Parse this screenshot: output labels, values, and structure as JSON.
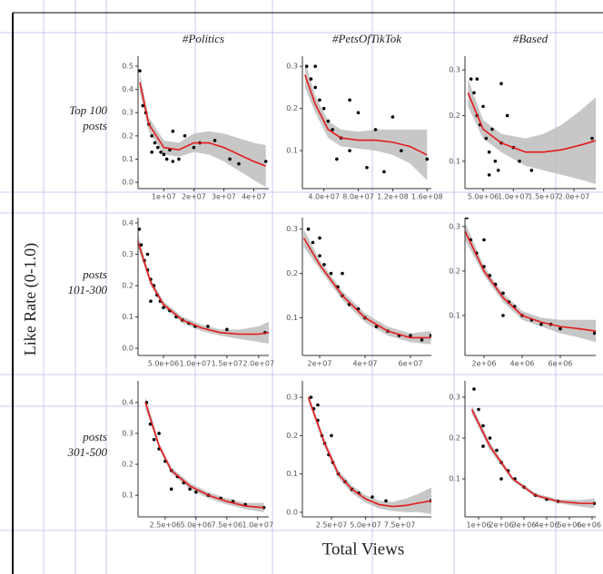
{
  "labels": {
    "columns": [
      "#Politics",
      "#PetsOfTikTok",
      "#Based"
    ],
    "rows": [
      [
        "Top 100",
        "posts"
      ],
      [
        "posts",
        "101-300"
      ],
      [
        "posts",
        "301-500"
      ]
    ],
    "y_label": "Like Rate (0-1.0)",
    "x_label": "Total Views"
  },
  "chart_data": [
    {
      "type": "scatter",
      "color": "#000000",
      "x": [
        2000000.0,
        3000000.0,
        4000000.0,
        5000000.0,
        6000000.0,
        7000000.0,
        8000000.0,
        9000000.0,
        10000000.0,
        11000000.0,
        12000000.0,
        13000000.0,
        15000000.0,
        17000000.0,
        20000000.0,
        22000000.0,
        27000000.0,
        32000000.0,
        35000000.0,
        44000000.0,
        6000000.0,
        13000000.0
      ],
      "y": [
        0.48,
        0.33,
        0.3,
        0.25,
        0.2,
        0.17,
        0.15,
        0.13,
        0.12,
        0.1,
        0.14,
        0.22,
        0.1,
        0.2,
        0.15,
        0.17,
        0.18,
        0.1,
        0.08,
        0.09,
        0.13,
        0.09
      ],
      "xlim": [
        1400000.0,
        45000000.0
      ],
      "ylim": [
        -0.027,
        0.543
      ],
      "xticks": [
        {
          "value": 10000000.0,
          "label": "1e+07"
        },
        {
          "value": 20000000.0,
          "label": "2e+07"
        },
        {
          "value": 30000000.0,
          "label": "3e+07"
        },
        {
          "value": 40000000.0,
          "label": "4e+07"
        }
      ],
      "yticks": [
        {
          "value": 0,
          "label": "0.0"
        },
        0.1,
        0.2,
        0.3,
        0.4,
        0.5
      ],
      "trend": {
        "color": "#e41a1c",
        "band_color": "#bdbdbd",
        "x": [
          2000000.0,
          5000000.0,
          10000000.0,
          15000000.0,
          20000000.0,
          25000000.0,
          30000000.0,
          35000000.0,
          40000000.0,
          44000000.0
        ],
        "y": [
          0.43,
          0.25,
          0.15,
          0.14,
          0.17,
          0.17,
          0.15,
          0.12,
          0.09,
          0.07
        ],
        "band_lower": [
          0.39,
          0.22,
          0.12,
          0.11,
          0.13,
          0.12,
          0.09,
          0.05,
          0.01,
          -0.02
        ],
        "band_upper": [
          0.47,
          0.28,
          0.18,
          0.17,
          0.21,
          0.22,
          0.21,
          0.19,
          0.17,
          0.16
        ]
      }
    },
    {
      "type": "scatter",
      "color": "#000000",
      "x": [
        20000000.0,
        25000000.0,
        30000000.0,
        35000000.0,
        40000000.0,
        45000000.0,
        50000000.0,
        60000000.0,
        70000000.0,
        70000000.0,
        80000000.0,
        90000000.0,
        100000000.0,
        110000000.0,
        120000000.0,
        130000000.0,
        160000000.0,
        30000000.0,
        55000000.0
      ],
      "y": [
        0.3,
        0.27,
        0.25,
        0.22,
        0.2,
        0.17,
        0.15,
        0.13,
        0.1,
        0.22,
        0.19,
        0.06,
        0.15,
        0.05,
        0.18,
        0.1,
        0.08,
        0.3,
        0.08
      ],
      "xlim": [
        15000000.0,
        165000000.0
      ],
      "ylim": [
        0.01,
        0.324
      ],
      "xticks": [
        {
          "value": 40000000.0,
          "label": "4.0e+07"
        },
        {
          "value": 80000000.0,
          "label": "8.0e+07"
        },
        {
          "value": 120000000.0,
          "label": "1.2e+08"
        },
        {
          "value": 160000000.0,
          "label": "1.6e+08"
        }
      ],
      "yticks": [
        0.1,
        0.2,
        0.3
      ],
      "trend": {
        "color": "#e41a1c",
        "band_color": "#bdbdbd",
        "x": [
          18000000.0,
          30000000.0,
          45000000.0,
          60000000.0,
          80000000.0,
          100000000.0,
          120000000.0,
          140000000.0,
          160000000.0
        ],
        "y": [
          0.28,
          0.21,
          0.15,
          0.13,
          0.125,
          0.125,
          0.12,
          0.11,
          0.09
        ],
        "band_lower": [
          0.25,
          0.19,
          0.13,
          0.11,
          0.105,
          0.1,
          0.09,
          0.07,
          0.03
        ],
        "band_upper": [
          0.31,
          0.23,
          0.17,
          0.15,
          0.145,
          0.15,
          0.15,
          0.15,
          0.15
        ]
      }
    },
    {
      "type": "scatter",
      "color": "#000000",
      "x": [
        3000000.0,
        3500000.0,
        4000000.0,
        4500000.0,
        5000000.0,
        5500000.0,
        6000000.0,
        6500000.0,
        7000000.0,
        7500000.0,
        8000000.0,
        8000000.0,
        9000000.0,
        10000000.0,
        11000000.0,
        13000000.0,
        23000000.0,
        4000000.0,
        6000000.0
      ],
      "y": [
        0.28,
        0.25,
        0.2,
        0.18,
        0.22,
        0.15,
        0.12,
        0.17,
        0.1,
        0.08,
        0.27,
        0.14,
        0.2,
        0.13,
        0.1,
        0.08,
        0.15,
        0.28,
        0.07
      ],
      "xlim": [
        2000000.0,
        23600000.0
      ],
      "ylim": [
        0.04,
        0.33
      ],
      "xticks": [
        {
          "value": 5000000.0,
          "label": "5.0e+06"
        },
        {
          "value": 10000000.0,
          "label": "1.0e+07"
        },
        {
          "value": 15000000.0,
          "label": "1.5e+07"
        },
        {
          "value": 20000000.0,
          "label": "2.0e+07"
        }
      ],
      "yticks": [
        0.1,
        0.2,
        0.3
      ],
      "trend": {
        "color": "#e41a1c",
        "band_color": "#bdbdbd",
        "x": [
          2500000.0,
          5000000.0,
          8000000.0,
          12000000.0,
          15000000.0,
          18000000.0,
          21000000.0,
          23600000.0
        ],
        "y": [
          0.25,
          0.17,
          0.14,
          0.12,
          0.12,
          0.125,
          0.135,
          0.145
        ],
        "band_lower": [
          0.22,
          0.15,
          0.12,
          0.09,
          0.08,
          0.07,
          0.06,
          0.05
        ],
        "band_upper": [
          0.28,
          0.19,
          0.16,
          0.15,
          0.16,
          0.18,
          0.21,
          0.24
        ]
      }
    },
    {
      "type": "scatter",
      "color": "#000000",
      "x": [
        1200000.0,
        1500000.0,
        2000000.0,
        2500000.0,
        3000000.0,
        3500000.0,
        4000000.0,
        4500000.0,
        5000000.0,
        6000000.0,
        7000000.0,
        8000000.0,
        9000000.0,
        10000000.0,
        12000000.0,
        15000000.0,
        21000000.0,
        2500000.0,
        3000000.0
      ],
      "y": [
        0.38,
        0.33,
        0.28,
        0.25,
        0.22,
        0.2,
        0.17,
        0.15,
        0.13,
        0.12,
        0.1,
        0.09,
        0.08,
        0.07,
        0.07,
        0.06,
        0.05,
        0.3,
        0.15
      ],
      "xlim": [
        1000000.0,
        21600000.0
      ],
      "ylim": [
        -0.023,
        0.417
      ],
      "xticks": [
        {
          "value": 5000000.0,
          "label": "5.0e+06"
        },
        {
          "value": 10000000.0,
          "label": "1.0e+07"
        },
        {
          "value": 15000000.0,
          "label": "1.5e+07"
        },
        {
          "value": 20000000.0,
          "label": "2.0e+07"
        }
      ],
      "yticks": [
        {
          "value": 0,
          "label": "0.0"
        },
        0.1,
        0.2,
        0.3,
        0.4
      ],
      "trend": {
        "color": "#e41a1c",
        "band_color": "#bdbdbd",
        "x": [
          1000000.0,
          3000000.0,
          5000000.0,
          8000000.0,
          11000000.0,
          14000000.0,
          17000000.0,
          20000000.0,
          21600000.0
        ],
        "y": [
          0.34,
          0.21,
          0.14,
          0.09,
          0.065,
          0.05,
          0.045,
          0.045,
          0.05
        ],
        "band_lower": [
          0.32,
          0.2,
          0.13,
          0.08,
          0.055,
          0.04,
          0.03,
          0.02,
          0.015
        ],
        "band_upper": [
          0.36,
          0.22,
          0.15,
          0.1,
          0.075,
          0.06,
          0.06,
          0.07,
          0.085
        ]
      }
    },
    {
      "type": "scatter",
      "color": "#000000",
      "x": [
        15000000.0,
        17000000.0,
        20000000.0,
        22000000.0,
        25000000.0,
        28000000.0,
        30000000.0,
        33000000.0,
        37000000.0,
        40000000.0,
        45000000.0,
        50000000.0,
        55000000.0,
        60000000.0,
        65000000.0,
        69000000.0,
        20000000.0,
        30000000.0
      ],
      "y": [
        0.3,
        0.27,
        0.24,
        0.22,
        0.2,
        0.17,
        0.15,
        0.13,
        0.12,
        0.1,
        0.08,
        0.07,
        0.06,
        0.06,
        0.05,
        0.06,
        0.28,
        0.2
      ],
      "xlim": [
        12400000.0,
        69200000.0
      ],
      "ylim": [
        0.015,
        0.326
      ],
      "xticks": [
        {
          "value": 20000000.0,
          "label": "2e+07"
        },
        {
          "value": 40000000.0,
          "label": "4e+07"
        },
        {
          "value": 60000000.0,
          "label": "6e+07"
        }
      ],
      "yticks": [
        0.1,
        0.2,
        0.3
      ],
      "trend": {
        "color": "#e41a1c",
        "band_color": "#bdbdbd",
        "x": [
          13000000.0,
          20000000.0,
          30000000.0,
          40000000.0,
          50000000.0,
          60000000.0,
          69000000.0
        ],
        "y": [
          0.28,
          0.22,
          0.15,
          0.1,
          0.07,
          0.055,
          0.055
        ],
        "band_lower": [
          0.26,
          0.21,
          0.14,
          0.09,
          0.06,
          0.045,
          0.04
        ],
        "band_upper": [
          0.3,
          0.23,
          0.16,
          0.11,
          0.08,
          0.065,
          0.07
        ]
      }
    },
    {
      "type": "scatter",
      "color": "#000000",
      "x": [
        1100000.0,
        1300000.0,
        1600000.0,
        2000000.0,
        2300000.0,
        2600000.0,
        3000000.0,
        3300000.0,
        3600000.0,
        4000000.0,
        4500000.0,
        5000000.0,
        5500000.0,
        6000000.0,
        7800000.0,
        2000000.0,
        3000000.0
      ],
      "y": [
        0.32,
        0.27,
        0.24,
        0.21,
        0.19,
        0.17,
        0.15,
        0.13,
        0.12,
        0.1,
        0.09,
        0.08,
        0.08,
        0.07,
        0.06,
        0.27,
        0.1
      ],
      "xlim": [
        1000000.0,
        7860000.0
      ],
      "ylim": [
        0.01,
        0.32
      ],
      "xticks": [
        {
          "value": 2000000.0,
          "label": "2e+06"
        },
        {
          "value": 4000000.0,
          "label": "4e+06"
        },
        {
          "value": 6000000.0,
          "label": "6e+06"
        }
      ],
      "yticks": [
        0.1,
        0.2,
        0.3
      ],
      "trend": {
        "color": "#e41a1c",
        "band_color": "#bdbdbd",
        "x": [
          1000000.0,
          2000000.0,
          3000000.0,
          4000000.0,
          5000000.0,
          6000000.0,
          7000000.0,
          7860000.0
        ],
        "y": [
          0.29,
          0.2,
          0.14,
          0.1,
          0.085,
          0.075,
          0.07,
          0.065
        ],
        "band_lower": [
          0.27,
          0.19,
          0.13,
          0.09,
          0.075,
          0.06,
          0.05,
          0.04
        ],
        "band_upper": [
          0.31,
          0.21,
          0.15,
          0.11,
          0.095,
          0.09,
          0.09,
          0.09
        ]
      }
    },
    {
      "type": "scatter",
      "color": "#000000",
      "x": [
        1000000.0,
        1300000.0,
        1600000.0,
        2000000.0,
        2500000.0,
        3000000.0,
        3500000.0,
        4000000.0,
        4500000.0,
        5000000.0,
        6000000.0,
        7000000.0,
        8000000.0,
        9000000.0,
        10500000.0,
        2000000.0,
        3000000.0
      ],
      "y": [
        0.4,
        0.33,
        0.28,
        0.25,
        0.21,
        0.18,
        0.16,
        0.14,
        0.12,
        0.11,
        0.1,
        0.09,
        0.08,
        0.07,
        0.06,
        0.3,
        0.12
      ],
      "xlim": [
        300000.0,
        10900000.0
      ],
      "ylim": [
        0.03,
        0.47
      ],
      "xticks": [
        {
          "value": 2500000.0,
          "label": "2.5e+06"
        },
        {
          "value": 5000000.0,
          "label": "5.0e+06"
        },
        {
          "value": 7500000.0,
          "label": "7.5e+06"
        },
        {
          "value": 10000000.0,
          "label": "1.0e+07"
        }
      ],
      "yticks": [
        0.1,
        0.2,
        0.3,
        0.4
      ],
      "trend": {
        "color": "#e41a1c",
        "band_color": "#bdbdbd",
        "x": [
          900000.0,
          2000000.0,
          3000000.0,
          4500000.0,
          6000000.0,
          7500000.0,
          9000000.0,
          10500000.0
        ],
        "y": [
          0.4,
          0.26,
          0.18,
          0.13,
          0.1,
          0.08,
          0.065,
          0.06
        ],
        "band_lower": [
          0.38,
          0.25,
          0.17,
          0.12,
          0.09,
          0.07,
          0.055,
          0.045
        ],
        "band_upper": [
          0.42,
          0.27,
          0.19,
          0.14,
          0.11,
          0.09,
          0.075,
          0.075
        ]
      }
    },
    {
      "type": "scatter",
      "color": "#000000",
      "x": [
        10000000.0,
        12000000.0,
        15000000.0,
        18000000.0,
        20000000.0,
        23000000.0,
        26000000.0,
        30000000.0,
        35000000.0,
        40000000.0,
        45000000.0,
        55000000.0,
        65000000.0,
        98000000.0,
        15000000.0,
        25000000.0
      ],
      "y": [
        0.3,
        0.27,
        0.24,
        0.2,
        0.18,
        0.15,
        0.13,
        0.1,
        0.08,
        0.06,
        0.05,
        0.04,
        0.03,
        0.03,
        0.28,
        0.2
      ],
      "xlim": [
        3700000.0,
        98300000.0
      ],
      "ylim": [
        -0.012,
        0.343
      ],
      "xticks": [
        {
          "value": 25000000.0,
          "label": "2.5e+07"
        },
        {
          "value": 50000000.0,
          "label": "5.0e+07"
        },
        {
          "value": 75000000.0,
          "label": "7.5e+07"
        }
      ],
      "yticks": [
        {
          "value": 0,
          "label": "0.0"
        },
        0.1,
        0.2,
        0.3
      ],
      "trend": {
        "color": "#e41a1c",
        "band_color": "#bdbdbd",
        "x": [
          8000000.0,
          20000000.0,
          30000000.0,
          40000000.0,
          50000000.0,
          60000000.0,
          70000000.0,
          80000000.0,
          90000000.0,
          98300000.0
        ],
        "y": [
          0.3,
          0.18,
          0.1,
          0.06,
          0.035,
          0.02,
          0.015,
          0.018,
          0.025,
          0.03
        ],
        "band_lower": [
          0.29,
          0.17,
          0.09,
          0.05,
          0.025,
          0.01,
          0.003,
          0.0,
          0.0,
          -0.005
        ],
        "band_upper": [
          0.31,
          0.19,
          0.11,
          0.07,
          0.045,
          0.03,
          0.027,
          0.036,
          0.05,
          0.065
        ]
      }
    },
    {
      "type": "scatter",
      "color": "#000000",
      "x": [
        800000.0,
        1000000.0,
        1200000.0,
        1500000.0,
        1800000.0,
        2000000.0,
        2300000.0,
        2600000.0,
        3000000.0,
        3500000.0,
        4000000.0,
        4500000.0,
        6100000.0,
        1200000.0,
        2000000.0
      ],
      "y": [
        0.32,
        0.27,
        0.23,
        0.2,
        0.17,
        0.14,
        0.12,
        0.1,
        0.08,
        0.06,
        0.05,
        0.045,
        0.04,
        0.18,
        0.1
      ],
      "xlim": [
        400000.0,
        6160000.0
      ],
      "ylim": [
        0.007,
        0.34
      ],
      "xticks": [
        {
          "value": 1000000.0,
          "label": "1e+06"
        },
        {
          "value": 2000000.0,
          "label": "2e+06"
        },
        {
          "value": 3000000.0,
          "label": "3e+06"
        },
        {
          "value": 4000000.0,
          "label": "4e+06"
        },
        {
          "value": 5000000.0,
          "label": "5e+06"
        },
        {
          "value": 6000000.0,
          "label": "6e+06"
        }
      ],
      "yticks": [
        0.1,
        0.2,
        0.3
      ],
      "trend": {
        "color": "#e41a1c",
        "band_color": "#bdbdbd",
        "x": [
          700000.0,
          1500000.0,
          2500000.0,
          3500000.0,
          4500000.0,
          5500000.0,
          6100000.0
        ],
        "y": [
          0.27,
          0.18,
          0.1,
          0.06,
          0.045,
          0.04,
          0.04
        ],
        "band_lower": [
          0.26,
          0.17,
          0.095,
          0.055,
          0.04,
          0.032,
          0.028
        ],
        "band_upper": [
          0.28,
          0.19,
          0.105,
          0.065,
          0.05,
          0.048,
          0.052
        ]
      }
    }
  ]
}
